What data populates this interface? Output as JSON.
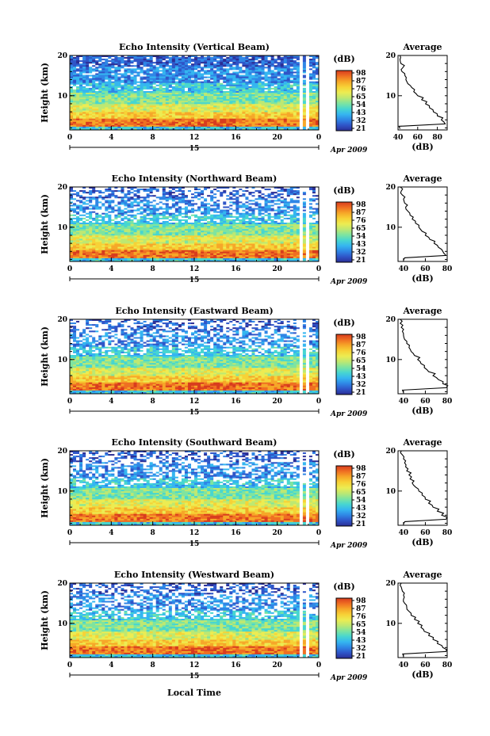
{
  "figure": {
    "x_axis_label": "Local Time",
    "date_prefix": "Apr",
    "year": "2009",
    "day": "15"
  },
  "colorbar": {
    "unit": "(dB)",
    "ticks": [
      "98",
      "87",
      "76",
      "65",
      "54",
      "43",
      "32",
      "21"
    ],
    "colors": [
      "#2b2e95",
      "#2f55c8",
      "#2f86e6",
      "#35b6f0",
      "#47d6d0",
      "#7ee4a0",
      "#bde872",
      "#ecec52",
      "#f7d236",
      "#f6a728",
      "#ef6f22",
      "#d83c1e"
    ]
  },
  "chart_data": [
    {
      "type": "heatmap",
      "title": "Echo Intensity (Vertical Beam)",
      "ylabel": "Height (km)",
      "x": [
        0,
        4,
        8,
        12,
        16,
        20,
        24
      ],
      "x_tick_labels": [
        "0",
        "4",
        "8",
        "12",
        "16",
        "20",
        "0"
      ],
      "y_ticks": [
        10,
        20
      ],
      "ylim": [
        1.5,
        20
      ],
      "xlim": [
        0,
        24
      ],
      "colorbar_ticks": [
        98,
        87,
        76,
        65,
        54,
        43,
        32,
        21
      ],
      "profile": {
        "title": "Average",
        "xlabel": "(dB)",
        "xlim": [
          40,
          90
        ],
        "x_ticks": [
          "40",
          "60",
          "80"
        ],
        "height": [
          1.8,
          3,
          4,
          5,
          6,
          7,
          8,
          9,
          10,
          11,
          12,
          13,
          14,
          15,
          16,
          17,
          18,
          19,
          20
        ],
        "db": [
          42,
          88,
          84,
          80,
          76,
          72,
          68,
          64,
          60,
          56,
          54,
          50,
          48,
          47,
          44,
          45,
          43,
          42,
          42
        ]
      }
    },
    {
      "type": "heatmap",
      "title": "Echo Intensity (Northward Beam)",
      "ylabel": "Height (km)",
      "x": [
        0,
        4,
        8,
        12,
        16,
        20,
        24
      ],
      "x_tick_labels": [
        "0",
        "4",
        "8",
        "12",
        "16",
        "20",
        "0"
      ],
      "y_ticks": [
        10,
        20
      ],
      "ylim": [
        1.5,
        20
      ],
      "xlim": [
        0,
        24
      ],
      "colorbar_ticks": [
        98,
        87,
        76,
        65,
        54,
        43,
        32,
        21
      ],
      "profile": {
        "title": "Average",
        "xlabel": "(dB)",
        "xlim": [
          35,
          80
        ],
        "x_ticks": [
          "40",
          "60",
          "80"
        ],
        "height": [
          1.8,
          3,
          4,
          5,
          6,
          7,
          8,
          9,
          10,
          11,
          12,
          13,
          14,
          15,
          16,
          17,
          18,
          19,
          20
        ],
        "db": [
          40,
          79,
          76,
          72,
          68,
          64,
          60,
          57,
          54,
          51,
          48,
          46,
          44,
          42,
          41,
          40,
          39,
          38,
          37
        ]
      }
    },
    {
      "type": "heatmap",
      "title": "Echo Intensity (Eastward Beam)",
      "ylabel": "Height (km)",
      "x": [
        0,
        4,
        8,
        12,
        16,
        20,
        24
      ],
      "x_tick_labels": [
        "0",
        "4",
        "8",
        "12",
        "16",
        "20",
        "0"
      ],
      "y_ticks": [
        10,
        20
      ],
      "ylim": [
        1.5,
        20
      ],
      "xlim": [
        0,
        24
      ],
      "colorbar_ticks": [
        98,
        87,
        76,
        65,
        54,
        43,
        32,
        21
      ],
      "profile": {
        "title": "Average",
        "xlabel": "(dB)",
        "xlim": [
          35,
          80
        ],
        "x_ticks": [
          "40",
          "60",
          "80"
        ],
        "height": [
          1.8,
          3,
          4,
          5,
          6,
          7,
          8,
          9,
          10,
          11,
          12,
          13,
          14,
          15,
          16,
          17,
          18,
          19,
          20
        ],
        "db": [
          40,
          79,
          76,
          72,
          67,
          63,
          59,
          56,
          53,
          50,
          47,
          45,
          43,
          41,
          40,
          39,
          38,
          37,
          37
        ]
      }
    },
    {
      "type": "heatmap",
      "title": "Echo Intensity (Southward Beam)",
      "ylabel": "Height (km)",
      "x": [
        0,
        4,
        8,
        12,
        16,
        20,
        24
      ],
      "x_tick_labels": [
        "0",
        "4",
        "8",
        "12",
        "16",
        "20",
        "0"
      ],
      "y_ticks": [
        10,
        20
      ],
      "ylim": [
        1.5,
        20
      ],
      "xlim": [
        0,
        24
      ],
      "colorbar_ticks": [
        98,
        87,
        76,
        65,
        54,
        43,
        32,
        21
      ],
      "profile": {
        "title": "Average",
        "xlabel": "(dB)",
        "xlim": [
          35,
          80
        ],
        "x_ticks": [
          "40",
          "60",
          "80"
        ],
        "height": [
          1.8,
          3,
          4,
          5,
          6,
          7,
          8,
          9,
          10,
          11,
          12,
          13,
          14,
          15,
          16,
          17,
          18,
          19,
          20
        ],
        "db": [
          40,
          79,
          75,
          71,
          67,
          63,
          60,
          57,
          54,
          51,
          48,
          46,
          45,
          43,
          42,
          41,
          40,
          39,
          38
        ]
      }
    },
    {
      "type": "heatmap",
      "title": "Echo Intensity (Westward Beam)",
      "ylabel": "Height (km)",
      "x": [
        0,
        4,
        8,
        12,
        16,
        20,
        24
      ],
      "x_tick_labels": [
        "0",
        "4",
        "8",
        "12",
        "16",
        "20",
        "0"
      ],
      "y_ticks": [
        10,
        20
      ],
      "ylim": [
        1.5,
        20
      ],
      "xlim": [
        35,
        80
      ],
      "colorbar_ticks": [
        98,
        87,
        76,
        65,
        54,
        43,
        32,
        21
      ],
      "profile": {
        "title": "Average",
        "xlabel": "(dB)",
        "xlim": [
          35,
          80
        ],
        "x_ticks": [
          "40",
          "60",
          "80"
        ],
        "height": [
          1.8,
          3,
          4,
          5,
          6,
          7,
          8,
          9,
          10,
          11,
          12,
          13,
          14,
          15,
          16,
          17,
          18,
          19,
          20
        ],
        "db": [
          40,
          79,
          76,
          71,
          67,
          63,
          59,
          56,
          53,
          50,
          47,
          45,
          43,
          41,
          40,
          40,
          39,
          38,
          38
        ]
      }
    }
  ]
}
